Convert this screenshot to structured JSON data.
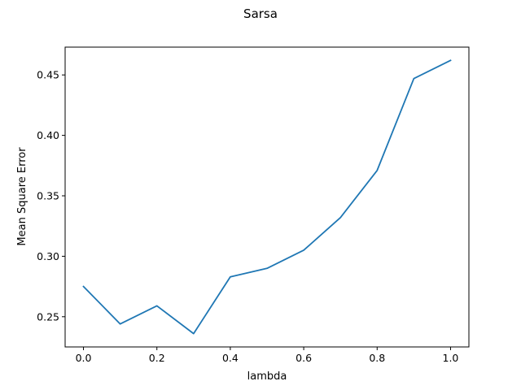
{
  "chart_data": {
    "type": "line",
    "title": "Sarsa",
    "xlabel": "lambda",
    "ylabel": "Mean Square Error",
    "xlim": [
      -0.05,
      1.05
    ],
    "ylim": [
      0.225,
      0.473
    ],
    "x_ticks": [
      0.0,
      0.2,
      0.4,
      0.6,
      0.8,
      1.0
    ],
    "x_tick_labels": [
      "0.0",
      "0.2",
      "0.4",
      "0.6",
      "0.8",
      "1.0"
    ],
    "y_ticks": [
      0.25,
      0.3,
      0.35,
      0.4,
      0.45
    ],
    "y_tick_labels": [
      "0.25",
      "0.30",
      "0.35",
      "0.40",
      "0.45"
    ],
    "grid": false,
    "legend": "none",
    "series": [
      {
        "color": "#1f77b4",
        "x": [
          0.0,
          0.1,
          0.2,
          0.3,
          0.4,
          0.5,
          0.6,
          0.7,
          0.8,
          0.9,
          1.0
        ],
        "y": [
          0.275,
          0.244,
          0.259,
          0.236,
          0.283,
          0.29,
          0.305,
          0.332,
          0.371,
          0.447,
          0.462
        ]
      }
    ]
  }
}
